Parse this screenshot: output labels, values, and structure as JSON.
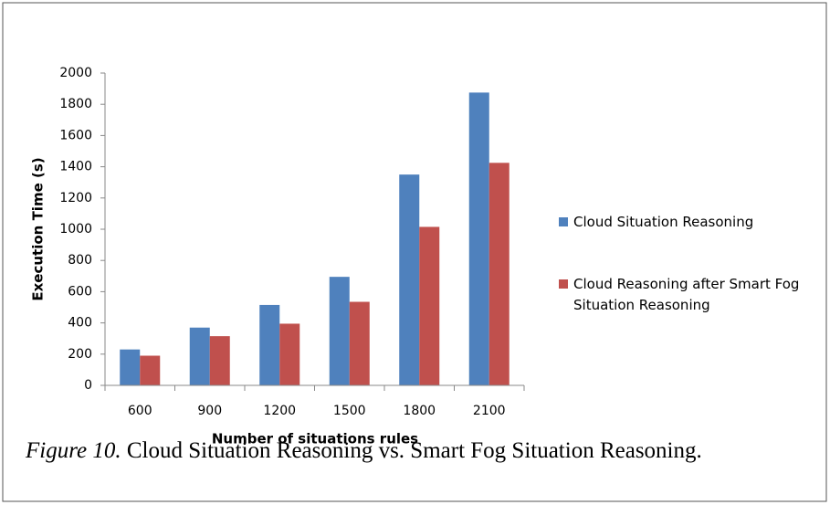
{
  "chart_data": {
    "type": "bar",
    "categories": [
      "600",
      "900",
      "1200",
      "1500",
      "1800",
      "2100"
    ],
    "series": [
      {
        "name": "Cloud Situation Reasoning",
        "color": "#4f81bd",
        "values": [
          230,
          370,
          515,
          695,
          1350,
          1875
        ]
      },
      {
        "name": "Cloud Reasoning after Smart Fog Situation Reasoning",
        "color": "#c0504d",
        "values": [
          190,
          315,
          395,
          535,
          1015,
          1425
        ]
      }
    ],
    "ylim": [
      0,
      2000
    ],
    "yticks": [
      0,
      200,
      400,
      600,
      800,
      1000,
      1200,
      1400,
      1600,
      1800,
      2000
    ],
    "ylabel": "Execution Time (s)",
    "xlabel": "Number of situations rules",
    "grid": false,
    "legend": "right",
    "caption_label": "Figure 10.",
    "caption_text": "Cloud Situation Reasoning vs. Smart Fog Situation Reasoning."
  }
}
